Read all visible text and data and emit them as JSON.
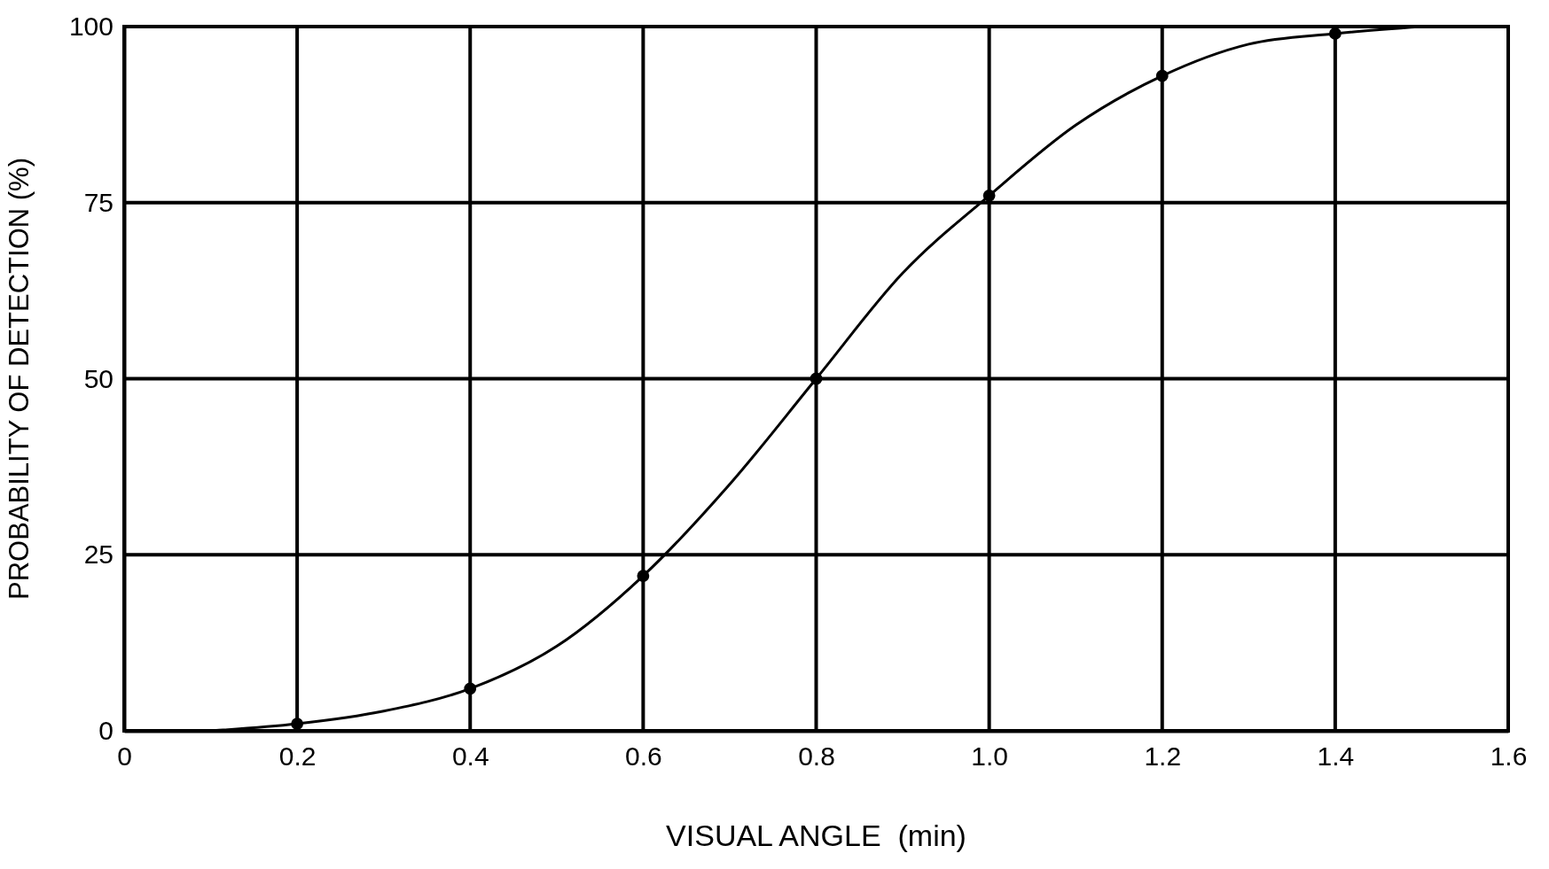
{
  "chart_data": {
    "type": "line",
    "xlabel": "VISUAL ANGLE  (min)",
    "ylabel": "PROBABILITY OF DETECTION (%)",
    "xlim": [
      0,
      1.6
    ],
    "xticks": [
      {
        "value": 0,
        "label": "0"
      },
      0.2,
      0.4,
      0.6,
      0.8,
      {
        "value": 1,
        "label": "1.0"
      },
      1.2,
      1.4,
      1.6
    ],
    "ylim": [
      0,
      100
    ],
    "yticks": [
      0,
      25,
      50,
      75,
      100
    ],
    "grid": true,
    "series": [
      {
        "type": "line",
        "color": "#000000",
        "marker": "none",
        "x": [
          0.1,
          0.2,
          0.3,
          0.4,
          0.5,
          0.6,
          0.7,
          0.8,
          0.9,
          1.0,
          1.1,
          1.2,
          1.3,
          1.4,
          1.5
        ],
        "values": [
          0,
          1,
          2.8,
          6,
          12,
          22,
          35,
          50,
          65,
          76,
          86,
          93,
          97.5,
          99,
          100
        ]
      },
      {
        "type": "scatter",
        "color": "#000000",
        "marker": "circle",
        "x": [
          0.2,
          0.4,
          0.6,
          0.8,
          1.0,
          1.2,
          1.4
        ],
        "values": [
          1,
          6,
          22,
          50,
          76,
          93,
          99
        ]
      }
    ]
  }
}
